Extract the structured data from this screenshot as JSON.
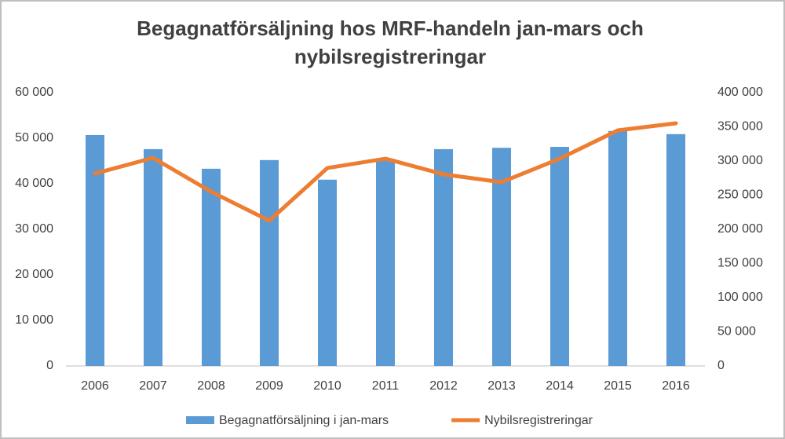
{
  "chart_data": {
    "type": "bar_line",
    "title": "Begagnatförsäljning hos MRF-handeln jan-mars och nybilsregistreringar",
    "categories": [
      "2006",
      "2007",
      "2008",
      "2009",
      "2010",
      "2011",
      "2012",
      "2013",
      "2014",
      "2015",
      "2016"
    ],
    "series": [
      {
        "name": "Begagnatförsäljning i jan-mars",
        "type": "bar",
        "color": "#5b9bd5",
        "axis": "y",
        "values": [
          50700,
          47600,
          43300,
          45200,
          40900,
          45500,
          47600,
          47900,
          48100,
          51600,
          50900
        ]
      },
      {
        "name": "Nybilsregistreringar",
        "type": "line",
        "color": "#ed7d31",
        "axis": "y2",
        "values": [
          281600,
          304600,
          255000,
          212600,
          289700,
          303400,
          280500,
          269000,
          303400,
          344800,
          355200
        ]
      }
    ],
    "ylim": [
      0,
      60000
    ],
    "yticks": [
      0,
      {
        "value": 10000,
        "label": "10 000"
      },
      {
        "value": 20000,
        "label": "20 000"
      },
      {
        "value": 30000,
        "label": "30 000"
      },
      {
        "value": 40000,
        "label": "40 000"
      },
      {
        "value": 50000,
        "label": "50 000"
      },
      {
        "value": 60000,
        "label": "60 000"
      }
    ],
    "y2lim": [
      0,
      400000
    ],
    "y2ticks": [
      0,
      {
        "value": 50000,
        "label": "50 000"
      },
      {
        "value": 100000,
        "label": "100 000"
      },
      {
        "value": 150000,
        "label": "150 000"
      },
      {
        "value": 200000,
        "label": "200 000"
      },
      {
        "value": 250000,
        "label": "250 000"
      },
      {
        "value": 300000,
        "label": "300 000"
      },
      {
        "value": 350000,
        "label": "350 000"
      },
      {
        "value": 400000,
        "label": "400 000"
      }
    ],
    "legend": "bottom",
    "grid": false
  }
}
